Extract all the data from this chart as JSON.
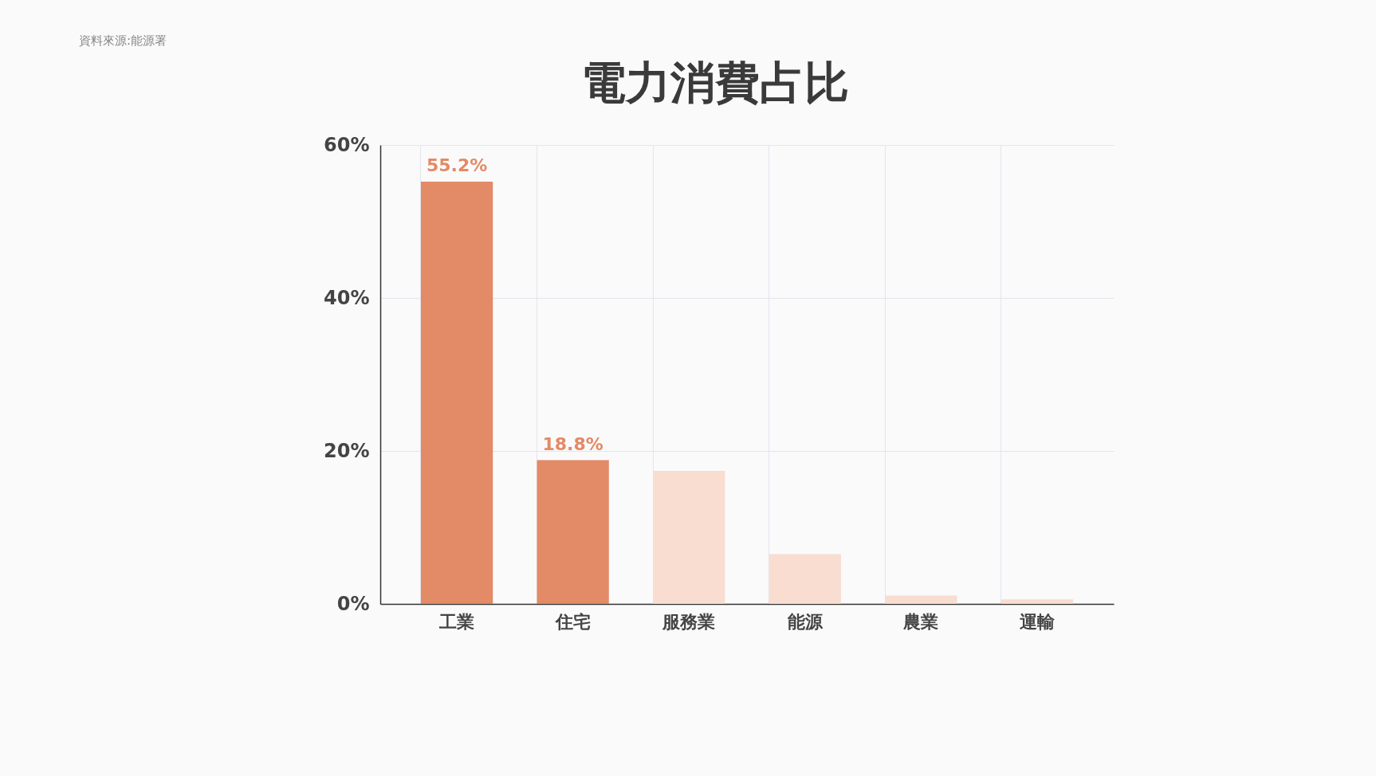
{
  "chart_data": {
    "type": "bar",
    "title": "電力消費占比",
    "categories": [
      "工業",
      "住宅",
      "服務業",
      "能源",
      "農業",
      "運輸"
    ],
    "values": [
      55.2,
      18.8,
      17.4,
      6.5,
      1.1,
      0.6
    ],
    "colors": [
      "#e38a66",
      "#e38a66",
      "#f8ddd0",
      "#f8ddd0",
      "#f8ddd0",
      "#f8ddd0"
    ],
    "value_labels": [
      "55.2%",
      "18.8%",
      null,
      null,
      null,
      null
    ],
    "ylim": [
      0,
      60
    ],
    "yticks": [
      {
        "value": 0,
        "label": "0%"
      },
      {
        "value": 20,
        "label": "20%"
      },
      {
        "value": 40,
        "label": "40%"
      },
      {
        "value": 60,
        "label": "60%"
      }
    ],
    "grid": true,
    "annotations": [
      "資料來源:能源署"
    ]
  }
}
